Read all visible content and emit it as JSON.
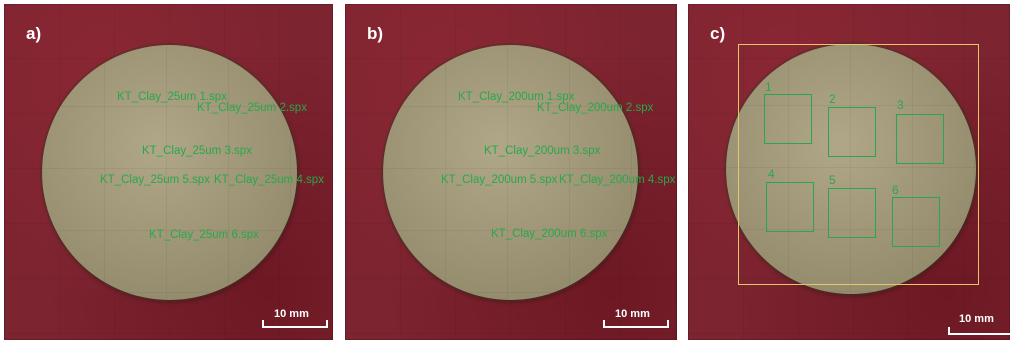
{
  "panels": {
    "a": {
      "label": "a)",
      "spectra": [
        "KT_Clay_25um 1.spx",
        "KT_Clay_25um 2.spx",
        "KT_Clay_25um 3.spx",
        "KT_Clay_25um 5.spx",
        "KT_Clay_25um 4.spx",
        "KT_Clay_25um 6.spx"
      ],
      "scale_label": "10 mm"
    },
    "b": {
      "label": "b)",
      "spectra": [
        "KT_Clay_200um 1.spx",
        "KT_Clay_200um 2.spx",
        "KT_Clay_200um 3.spx",
        "KT_Clay_200um 5.spx",
        "KT_Clay_200um 4.spx",
        "KT_Clay_200um 6.spx"
      ],
      "scale_label": "10 mm"
    },
    "c": {
      "label": "c)",
      "regions": [
        "1",
        "2",
        "3",
        "4",
        "5",
        "6"
      ],
      "scale_label": "10 mm"
    }
  },
  "colors": {
    "background": "#7c2430",
    "sample": "#a39a7b",
    "annotation": "#27a84a",
    "frame": "#e2c866",
    "label": "#ffffff"
  }
}
